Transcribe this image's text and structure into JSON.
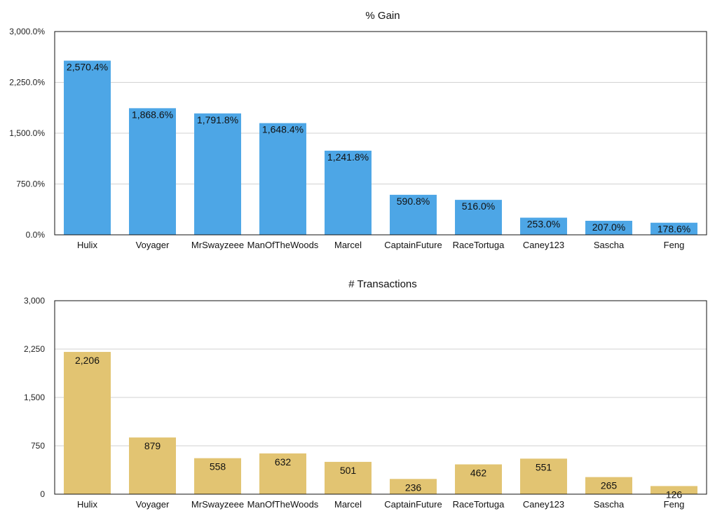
{
  "chart_data": [
    {
      "type": "bar",
      "title": "% Gain",
      "categories": [
        "Hulix",
        "Voyager",
        "MrSwayzeee",
        "ManOfTheWoods",
        "Marcel",
        "CaptainFuture",
        "RaceTortuga",
        "Caney123",
        "Sascha",
        "Feng"
      ],
      "values": [
        2570.4,
        1868.6,
        1791.8,
        1648.4,
        1241.8,
        590.8,
        516.0,
        253.0,
        207.0,
        178.6
      ],
      "value_labels": [
        "2,570.4%",
        "1,868.6%",
        "1,791.8%",
        "1,648.4%",
        "1,241.8%",
        "590.8%",
        "516.0%",
        "253.0%",
        "207.0%",
        "178.6%"
      ],
      "ylim": [
        0,
        3000
      ],
      "yticks": [
        0,
        750,
        1500,
        2250,
        3000
      ],
      "ytick_labels": [
        "0.0%",
        "750.0%",
        "1,500.0%",
        "2,250.0%",
        "3,000.0%"
      ],
      "grid": true,
      "color": "#4da6e6"
    },
    {
      "type": "bar",
      "title": "# Transactions",
      "categories": [
        "Hulix",
        "Voyager",
        "MrSwayzeee",
        "ManOfTheWoods",
        "Marcel",
        "CaptainFuture",
        "RaceTortuga",
        "Caney123",
        "Sascha",
        "Feng"
      ],
      "values": [
        2206,
        879,
        558,
        632,
        501,
        236,
        462,
        551,
        265,
        126
      ],
      "value_labels": [
        "2,206",
        "879",
        "558",
        "632",
        "501",
        "236",
        "462",
        "551",
        "265",
        "126"
      ],
      "ylim": [
        0,
        3000
      ],
      "yticks": [
        0,
        750,
        1500,
        2250,
        3000
      ],
      "ytick_labels": [
        "0",
        "750",
        "1,500",
        "2,250",
        "3,000"
      ],
      "grid": true,
      "color": "#e2c472"
    }
  ]
}
